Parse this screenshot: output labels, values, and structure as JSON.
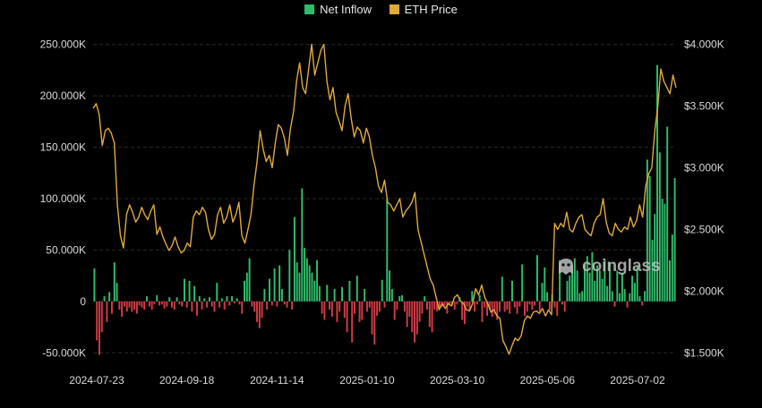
{
  "legend": {
    "inflow_label": "Net Inflow",
    "price_label": "ETH Price"
  },
  "watermark": {
    "text": "coinglass",
    "icon": "coinglass-logo-icon"
  },
  "colors": {
    "background": "#000000",
    "inflow_positive": "#2ebd6b",
    "inflow_negative": "#d23b45",
    "price_line": "#e0a93a",
    "grid": "#2a2a2a",
    "tick_text": "#d9d9d9"
  },
  "chart_data": {
    "type": "bar",
    "x_ticks": [
      "2024-07-23",
      "2024-09-18",
      "2024-11-14",
      "2025-01-10",
      "2025-03-10",
      "2025-05-06",
      "2025-07-02"
    ],
    "y_left": {
      "ticks": [
        250000,
        200000,
        150000,
        100000,
        50000,
        0,
        -50000
      ],
      "tick_labels": [
        "250.000K",
        "200.000K",
        "150.000K",
        "100.000K",
        "50.000K",
        "0",
        "-50.000K"
      ],
      "range": [
        -55000,
        255000
      ]
    },
    "y_right": {
      "ticks": [
        4000,
        3500,
        3000,
        2500,
        2000,
        1500
      ],
      "tick_labels": [
        "$4.000K",
        "$3.500K",
        "$3.000K",
        "$2.500K",
        "$2.000K",
        "$1.500K"
      ],
      "range": [
        1460,
        4040
      ]
    },
    "grid": "horizontal-dashed",
    "legend_position": "top-center",
    "series": [
      {
        "name": "Net Inflow",
        "axis": "left",
        "render": "bar",
        "values": [
          32000,
          -38000,
          -52000,
          -30000,
          5000,
          -20000,
          9000,
          -12000,
          38000,
          18000,
          -8000,
          -15000,
          -5000,
          -10000,
          -6000,
          -10000,
          -8000,
          -12000,
          -4000,
          -6000,
          -8000,
          5000,
          -5000,
          -8000,
          -3000,
          6000,
          -4000,
          -3000,
          -7000,
          -5000,
          4000,
          -6000,
          -8000,
          4000,
          -3000,
          -5000,
          22000,
          -6000,
          20000,
          -10000,
          15000,
          -14000,
          5000,
          -8000,
          3000,
          -6000,
          4000,
          -5000,
          -10000,
          18000,
          -6000,
          3000,
          -8000,
          5000,
          -4000,
          5000,
          -2000,
          3000,
          -3000,
          -12000,
          20000,
          28000,
          42000,
          -5000,
          -10000,
          -20000,
          -26000,
          -16000,
          12000,
          -8000,
          22000,
          -4000,
          32000,
          -5000,
          35000,
          12000,
          -3000,
          -6000,
          50000,
          -8000,
          82000,
          38000,
          28000,
          110000,
          52000,
          42000,
          35000,
          28000,
          20000,
          40000,
          15000,
          -12000,
          -18000,
          16000,
          -8000,
          -15000,
          12000,
          -20000,
          -10000,
          14000,
          -16000,
          -30000,
          20000,
          -40000,
          -12000,
          25000,
          -20000,
          -18000,
          12000,
          -10000,
          -6000,
          -32000,
          -42000,
          -14000,
          -10000,
          21000,
          -6000,
          100000,
          30000,
          12000,
          -18000,
          -8000,
          5000,
          6000,
          -10000,
          -25000,
          -15000,
          -30000,
          -40000,
          -32000,
          -20000,
          -12000,
          5000,
          -8000,
          -25000,
          -30000,
          -8000,
          -10000,
          -6000,
          -5000,
          -4000,
          -12000,
          -3000,
          -4000,
          -8000,
          -3000,
          4000,
          -18000,
          -22000,
          -5000,
          -8000,
          10000,
          -10000,
          -3000,
          6000,
          -20000,
          -6000,
          -14000,
          -8000,
          -15000,
          -12000,
          -18000,
          -10000,
          24000,
          -10000,
          -8000,
          -12000,
          20000,
          -6000,
          -12000,
          -5000,
          36000,
          -14000,
          -10000,
          -3000,
          -8000,
          -4000,
          45000,
          -10000,
          18000,
          33000,
          9000,
          -8000,
          7000,
          -6000,
          -14000,
          40000,
          -3000,
          -10000,
          20000,
          25000,
          35000,
          42000,
          30000,
          8000,
          10000,
          36000,
          44000,
          28000,
          48000,
          20000,
          35000,
          30000,
          22000,
          40000,
          15000,
          38000,
          10000,
          -5000,
          30000,
          8000,
          28000,
          12000,
          -6000,
          8000,
          25000,
          18000,
          35000,
          5000,
          -4000,
          10000,
          138000,
          122000,
          60000,
          85000,
          230000,
          145000,
          100000,
          95000,
          170000,
          40000,
          65000,
          120000
        ],
        "value_min": -52000,
        "value_max": 230000
      },
      {
        "name": "ETH Price",
        "axis": "right",
        "render": "line",
        "values": [
          3480,
          3520,
          3430,
          3180,
          3300,
          3320,
          3280,
          3200,
          2700,
          2450,
          2350,
          2620,
          2700,
          2640,
          2560,
          2600,
          2680,
          2620,
          2580,
          2650,
          2700,
          2460,
          2520,
          2440,
          2380,
          2330,
          2370,
          2440,
          2360,
          2310,
          2330,
          2390,
          2360,
          2600,
          2650,
          2620,
          2680,
          2640,
          2500,
          2420,
          2460,
          2620,
          2680,
          2550,
          2600,
          2700,
          2560,
          2620,
          2720,
          2450,
          2390,
          2500,
          2620,
          2860,
          3050,
          3300,
          3150,
          3050,
          3100,
          3000,
          3200,
          3350,
          3320,
          3240,
          3100,
          3320,
          3450,
          3700,
          3850,
          3650,
          3600,
          3800,
          4000,
          3750,
          3850,
          3950,
          4000,
          3700,
          3550,
          3650,
          3450,
          3380,
          3300,
          3500,
          3600,
          3400,
          3250,
          3330,
          3300,
          3200,
          3320,
          3250,
          3100,
          3000,
          2850,
          2800,
          2900,
          2720,
          2700,
          2650,
          2700,
          2750,
          2600,
          2650,
          2680,
          2720,
          2800,
          2500,
          2400,
          2300,
          2200,
          2100,
          2050,
          1950,
          1850,
          1900,
          1860,
          1900,
          1880,
          1950,
          1970,
          1920,
          1900,
          1850,
          1840,
          1900,
          2020,
          1970,
          2050,
          1950,
          1900,
          1830,
          1850,
          1800,
          1780,
          1600,
          1550,
          1490,
          1560,
          1620,
          1600,
          1640,
          1760,
          1800,
          1780,
          1830,
          1840,
          1820,
          1860,
          1800,
          1850,
          1810,
          2550,
          2500,
          2550,
          2520,
          2640,
          2500,
          2480,
          2550,
          2600,
          2620,
          2500,
          2470,
          2450,
          2550,
          2600,
          2620,
          2750,
          2560,
          2470,
          2450,
          2550,
          2500,
          2480,
          2520,
          2500,
          2600,
          2520,
          2570,
          2700,
          2600,
          2850,
          2950,
          3000,
          3300,
          3500,
          3800,
          3700,
          3650,
          3600,
          3750,
          3650
        ]
      }
    ]
  }
}
